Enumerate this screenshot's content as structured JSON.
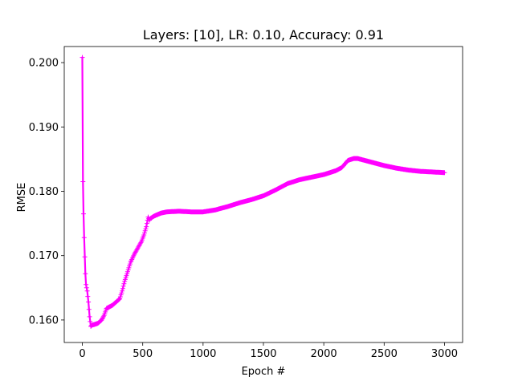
{
  "chart_data": {
    "type": "line",
    "title": "Layers: [10], LR: 0.10, Accuracy: 0.91",
    "xlabel": "Epoch #",
    "ylabel": "RMSE",
    "xlim": [
      -150,
      3150
    ],
    "ylim": [
      0.1565,
      0.2025
    ],
    "grid": false,
    "xticks": [
      0,
      500,
      1000,
      1500,
      2000,
      2500,
      3000
    ],
    "xtick_labels": [
      "0",
      "500",
      "1000",
      "1500",
      "2000",
      "2500",
      "3000"
    ],
    "yticks": [
      0.16,
      0.17,
      0.18,
      0.19,
      0.2
    ],
    "ytick_labels": [
      "0.160",
      "0.170",
      "0.180",
      "0.190",
      "0.200"
    ],
    "series": [
      {
        "name": "RMSE",
        "color": "#ff00ff",
        "marker": "plus",
        "x": [
          0,
          5,
          10,
          15,
          20,
          25,
          30,
          40,
          50,
          60,
          70,
          80,
          100,
          130,
          160,
          180,
          200,
          220,
          250,
          280,
          310,
          330,
          350,
          380,
          400,
          430,
          460,
          490,
          510,
          530,
          545,
          555,
          565,
          600,
          650,
          700,
          800,
          900,
          1000,
          1100,
          1200,
          1300,
          1400,
          1500,
          1600,
          1700,
          1800,
          1900,
          2000,
          2100,
          2150,
          2200,
          2250,
          2280,
          2300,
          2320,
          2400,
          2500,
          2600,
          2700,
          2800,
          2900,
          3000
        ],
        "y": [
          0.2008,
          0.1815,
          0.1765,
          0.1728,
          0.1698,
          0.1672,
          0.1655,
          0.1645,
          0.1628,
          0.1605,
          0.159,
          0.1592,
          0.1593,
          0.1595,
          0.16,
          0.1607,
          0.1618,
          0.162,
          0.1623,
          0.1628,
          0.1633,
          0.1645,
          0.166,
          0.1678,
          0.169,
          0.1702,
          0.1712,
          0.1722,
          0.1732,
          0.1745,
          0.176,
          0.1755,
          0.1758,
          0.1762,
          0.1766,
          0.1768,
          0.1769,
          0.1768,
          0.1768,
          0.1771,
          0.1776,
          0.1782,
          0.1787,
          0.1793,
          0.1802,
          0.1812,
          0.1818,
          0.1822,
          0.1826,
          0.1832,
          0.1837,
          0.1848,
          0.1851,
          0.1851,
          0.185,
          0.1849,
          0.1845,
          0.184,
          0.1836,
          0.1833,
          0.1831,
          0.183,
          0.1829
        ]
      }
    ]
  }
}
